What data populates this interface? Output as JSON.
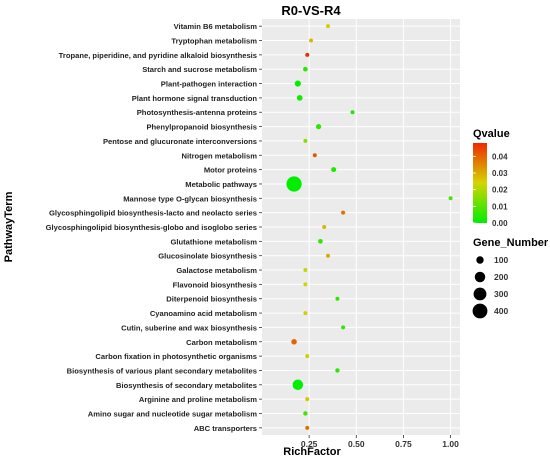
{
  "chart_data": {
    "type": "scatter",
    "title": "R0-VS-R4",
    "xlabel": "RichFactor",
    "ylabel": "PathwayTerm",
    "xlim": [
      0.0,
      1.05
    ],
    "xticks": [
      "0.25",
      "0.50",
      "0.75",
      "1.00"
    ],
    "xtick_values": [
      0.25,
      0.5,
      0.75,
      1.0
    ],
    "grid": true,
    "background": "#ebebeb",
    "legend_placement": "right",
    "color_legend": {
      "title": "Qvalue",
      "min": 0.0,
      "max": 0.048,
      "ticks": [
        "0.04",
        "0.03",
        "0.02",
        "0.01",
        "0.00"
      ],
      "tick_values": [
        0.04,
        0.03,
        0.02,
        0.01,
        0.0
      ],
      "low_color": "#00ee00",
      "mid_color": "#d4d400",
      "high_color": "#ee2a00"
    },
    "size_legend": {
      "title": "Gene_Number",
      "labels": [
        "100",
        "200",
        "300",
        "400"
      ],
      "values": [
        100,
        200,
        300,
        400
      ]
    },
    "points": [
      {
        "term": "Vitamin B6 metabolism",
        "rich": 0.35,
        "genes": 8,
        "q": 0.025
      },
      {
        "term": "Tryptophan metabolism",
        "rich": 0.26,
        "genes": 12,
        "q": 0.028
      },
      {
        "term": "Tropane, piperidine, and pyridine alkaloid biosynthesis",
        "rich": 0.24,
        "genes": 14,
        "q": 0.048
      },
      {
        "term": "Starch and sucrose metabolism",
        "rich": 0.23,
        "genes": 40,
        "q": 0.005
      },
      {
        "term": "Plant-pathogen interaction",
        "rich": 0.19,
        "genes": 70,
        "q": 0.0
      },
      {
        "term": "Plant hormone signal transduction",
        "rich": 0.2,
        "genes": 60,
        "q": 0.002
      },
      {
        "term": "Photosynthesis-antenna proteins",
        "rich": 0.48,
        "genes": 8,
        "q": 0.003
      },
      {
        "term": "Phenylpropanoid biosynthesis",
        "rich": 0.3,
        "genes": 50,
        "q": 0.005
      },
      {
        "term": "Pentose and glucuronate interconversions",
        "rich": 0.23,
        "genes": 25,
        "q": 0.015
      },
      {
        "term": "Nitrogen metabolism",
        "rich": 0.28,
        "genes": 10,
        "q": 0.042
      },
      {
        "term": "Motor proteins",
        "rich": 0.38,
        "genes": 45,
        "q": 0.003
      },
      {
        "term": "Metabolic pathways",
        "rich": 0.17,
        "genes": 420,
        "q": 0.0
      },
      {
        "term": "Mannose type O-glycan biosynthesis",
        "rich": 1.0,
        "genes": 3,
        "q": 0.008
      },
      {
        "term": "Glycosphingolipid biosynthesis-lacto and neolacto series",
        "rich": 0.43,
        "genes": 7,
        "q": 0.038
      },
      {
        "term": "Glycosphingolipid biosynthesis-globo and isoglobo series",
        "rich": 0.33,
        "genes": 8,
        "q": 0.028
      },
      {
        "term": "Glutathione metabolism",
        "rich": 0.31,
        "genes": 40,
        "q": 0.005
      },
      {
        "term": "Glucosinolate biosynthesis",
        "rich": 0.35,
        "genes": 9,
        "q": 0.03
      },
      {
        "term": "Galactose metabolism",
        "rich": 0.23,
        "genes": 20,
        "q": 0.022
      },
      {
        "term": "Flavonoid biosynthesis",
        "rich": 0.23,
        "genes": 20,
        "q": 0.024
      },
      {
        "term": "Diterpenoid biosynthesis",
        "rich": 0.4,
        "genes": 18,
        "q": 0.005
      },
      {
        "term": "Cyanoamino acid metabolism",
        "rich": 0.23,
        "genes": 16,
        "q": 0.025
      },
      {
        "term": "Cutin, suberine and wax biosynthesis",
        "rich": 0.43,
        "genes": 18,
        "q": 0.005
      },
      {
        "term": "Carbon metabolism",
        "rich": 0.17,
        "genes": 55,
        "q": 0.04
      },
      {
        "term": "Carbon fixation in photosynthetic organisms",
        "rich": 0.24,
        "genes": 18,
        "q": 0.025
      },
      {
        "term": "Biosynthesis of various plant secondary metabolites",
        "rich": 0.4,
        "genes": 35,
        "q": 0.005
      },
      {
        "term": "Biosynthesis of secondary metabolites",
        "rich": 0.19,
        "genes": 200,
        "q": 0.0
      },
      {
        "term": "Arginine and proline metabolism",
        "rich": 0.24,
        "genes": 18,
        "q": 0.026
      },
      {
        "term": "Amino sugar and nucleotide sugar metabolism",
        "rich": 0.23,
        "genes": 35,
        "q": 0.007
      },
      {
        "term": "ABC transporters",
        "rich": 0.24,
        "genes": 20,
        "q": 0.038
      }
    ]
  }
}
